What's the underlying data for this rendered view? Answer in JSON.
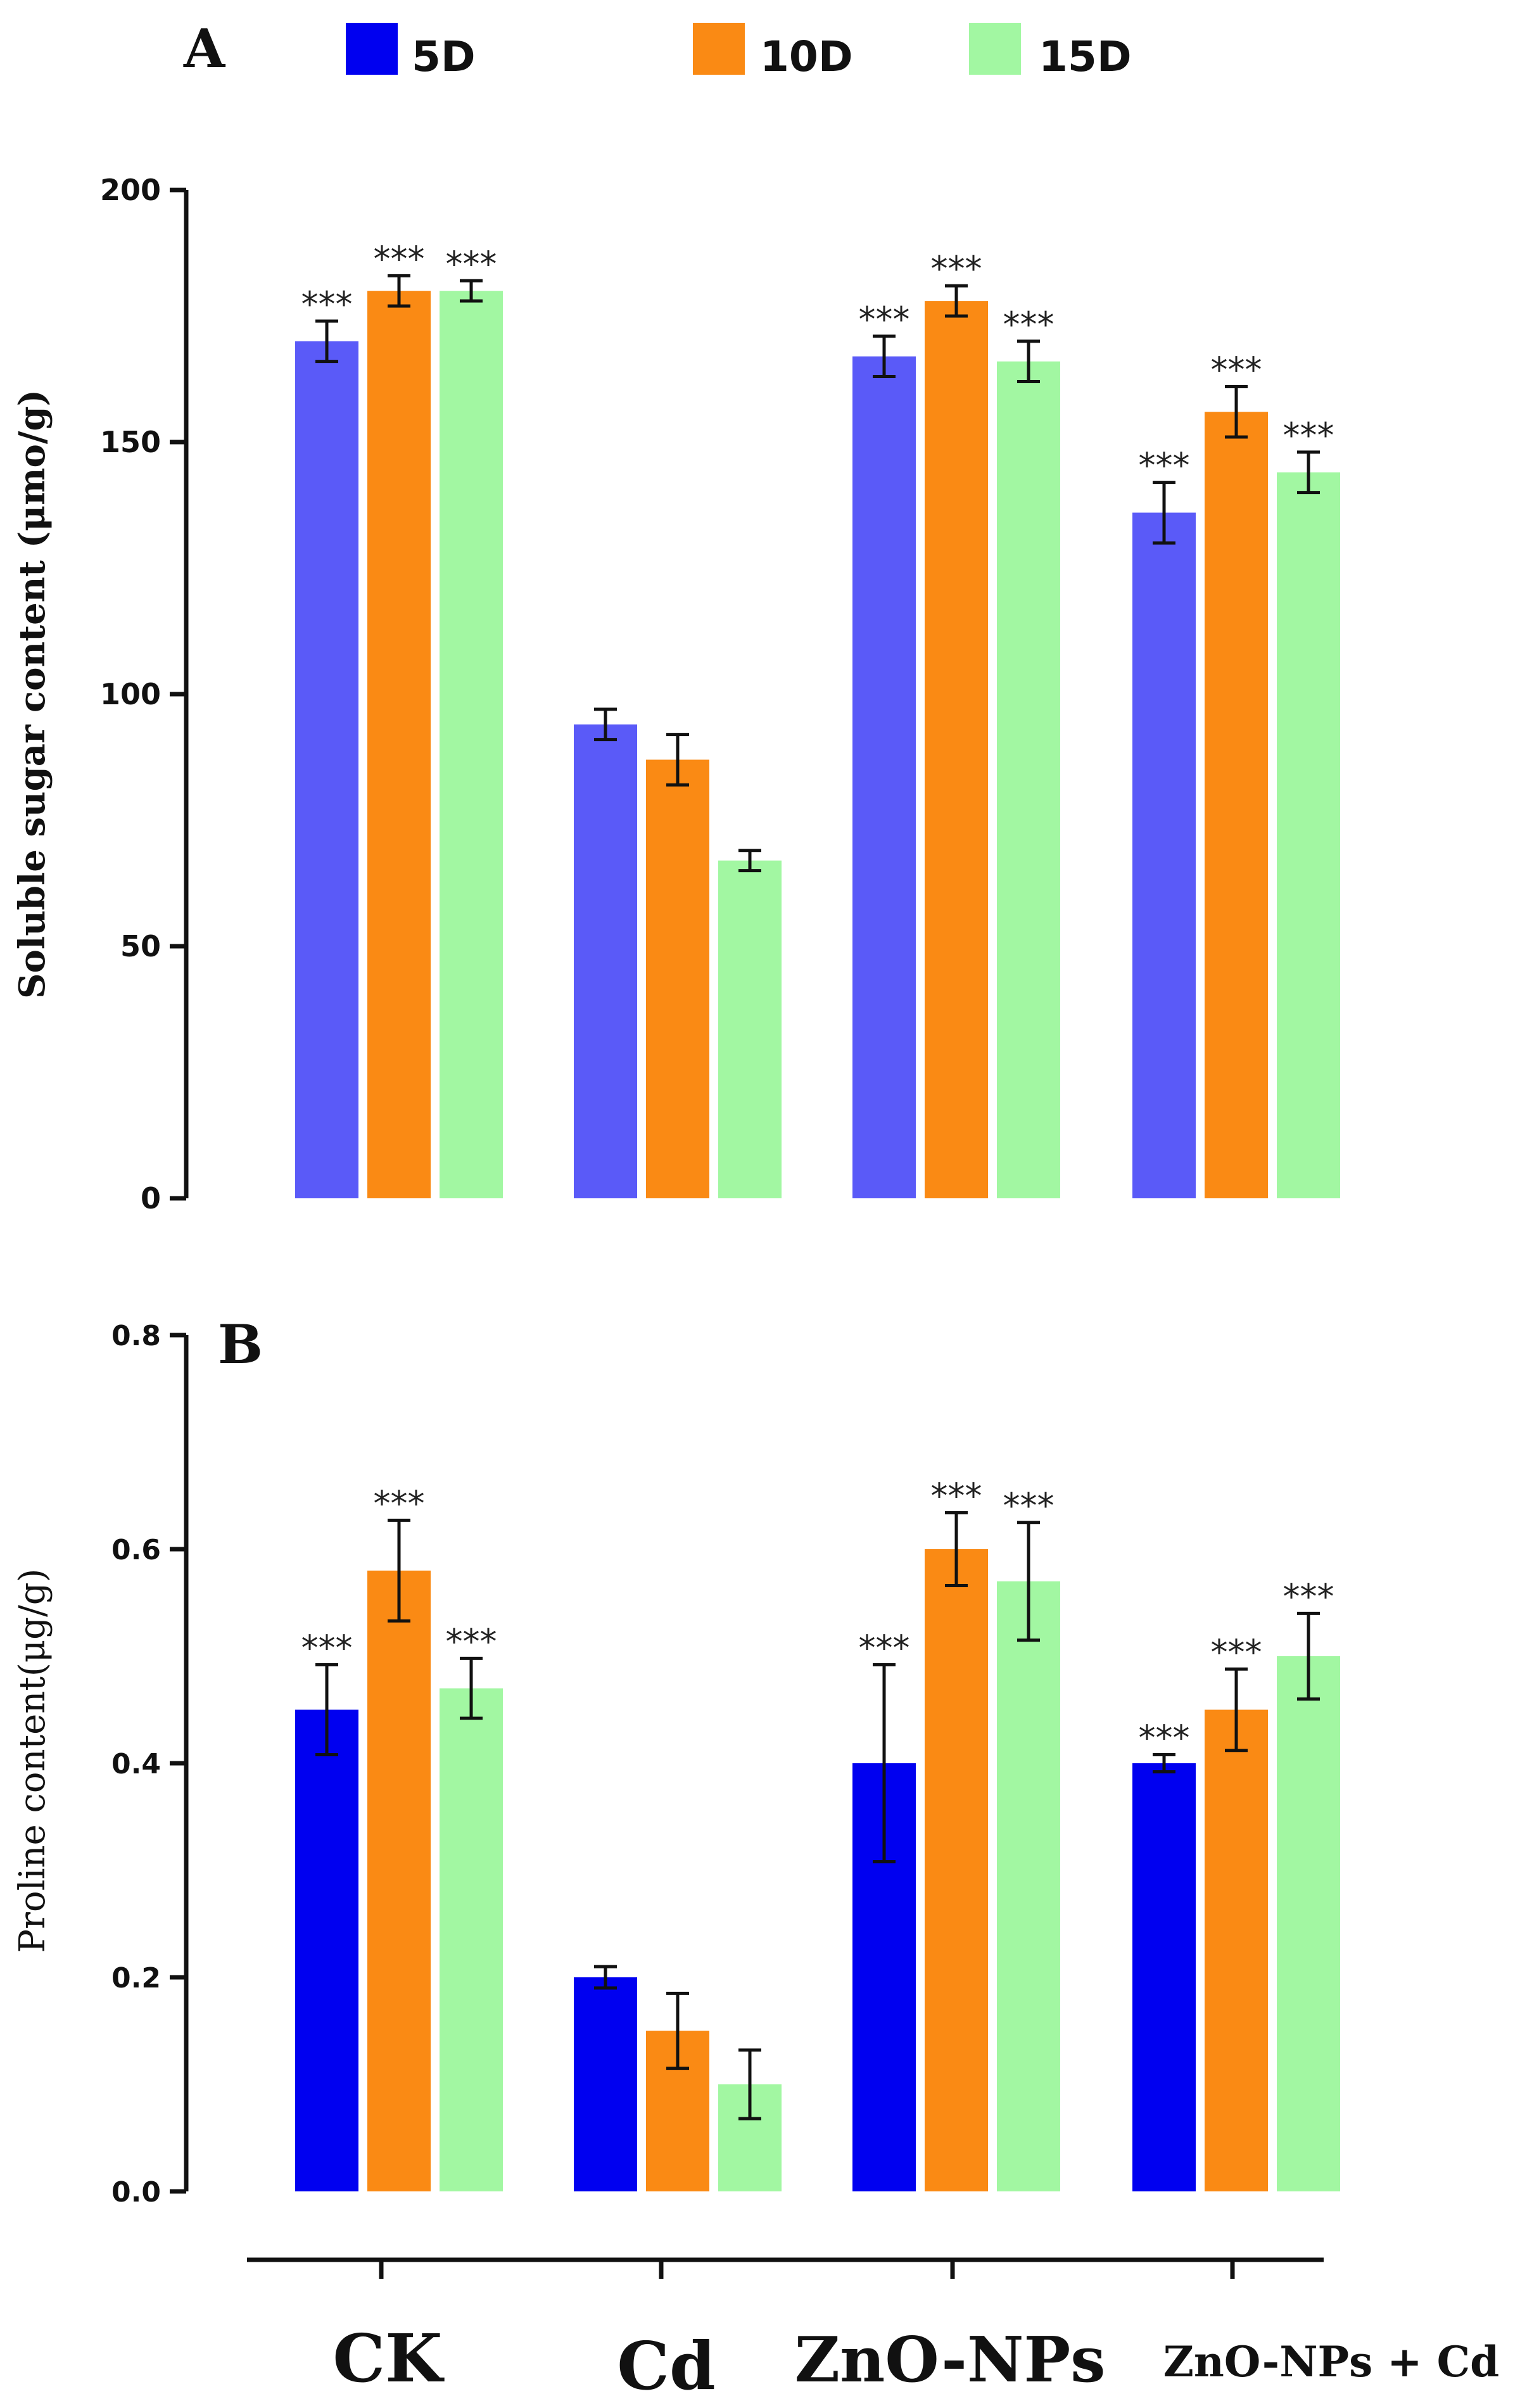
{
  "chart_data": [
    {
      "panel": "A",
      "type": "bar",
      "ylabel": "Soluble sugar content (μmo/g)",
      "ylim": [
        0,
        200
      ],
      "yticks": [
        "0",
        "50",
        "100",
        "150",
        "200"
      ],
      "categories": [
        "CK",
        "Cd",
        "ZnO-NPs",
        "ZnO-NPs + Cd"
      ],
      "series": [
        {
          "name": "5D",
          "color": "#5a5af8",
          "values": [
            170,
            94,
            167,
            136
          ],
          "errors": [
            4,
            3,
            4,
            6
          ],
          "sig": [
            "***",
            "",
            "***",
            "***"
          ]
        },
        {
          "name": "10D",
          "color": "#fa8a14",
          "values": [
            180,
            87,
            178,
            156
          ],
          "errors": [
            3,
            5,
            3,
            5
          ],
          "sig": [
            "***",
            "",
            "***",
            "***"
          ]
        },
        {
          "name": "15D",
          "color": "#a2f7a2",
          "values": [
            180,
            67,
            166,
            144
          ],
          "errors": [
            2,
            2,
            4,
            4
          ],
          "sig": [
            "***",
            "",
            "***",
            "***"
          ]
        }
      ]
    },
    {
      "panel": "B",
      "type": "bar",
      "ylabel": "Proline content(μg/g)",
      "ylim": [
        0.0,
        0.8
      ],
      "yticks": [
        "0.0",
        "0.2",
        "0.4",
        "0.6",
        "0.8"
      ],
      "categories": [
        "CK",
        "Cd",
        "ZnO-NPs",
        "ZnO-NPs + Cd"
      ],
      "series": [
        {
          "name": "5D",
          "color": "#0000f0",
          "values": [
            0.45,
            0.2,
            0.4,
            0.4
          ],
          "errors": [
            0.042,
            0.01,
            0.092,
            0.008
          ],
          "sig": [
            "***",
            "",
            "***",
            "***"
          ]
        },
        {
          "name": "10D",
          "color": "#fa8a14",
          "values": [
            0.58,
            0.15,
            0.6,
            0.45
          ],
          "errors": [
            0.047,
            0.035,
            0.034,
            0.038
          ],
          "sig": [
            "***",
            "",
            "***",
            "***"
          ]
        },
        {
          "name": "15D",
          "color": "#a2f7a2",
          "values": [
            0.47,
            0.1,
            0.57,
            0.5
          ],
          "errors": [
            0.028,
            0.032,
            0.055,
            0.04
          ],
          "sig": [
            "***",
            "",
            "***",
            "***"
          ]
        }
      ]
    }
  ],
  "legend": {
    "items": [
      {
        "label": "5D",
        "color": "#0000f0"
      },
      {
        "label": "10D",
        "color": "#fa8a14"
      },
      {
        "label": "15D",
        "color": "#a2f7a2"
      }
    ]
  },
  "x_categories": [
    "CK",
    "Cd",
    "ZnO-NPs",
    "ZnO-NPs + Cd"
  ]
}
